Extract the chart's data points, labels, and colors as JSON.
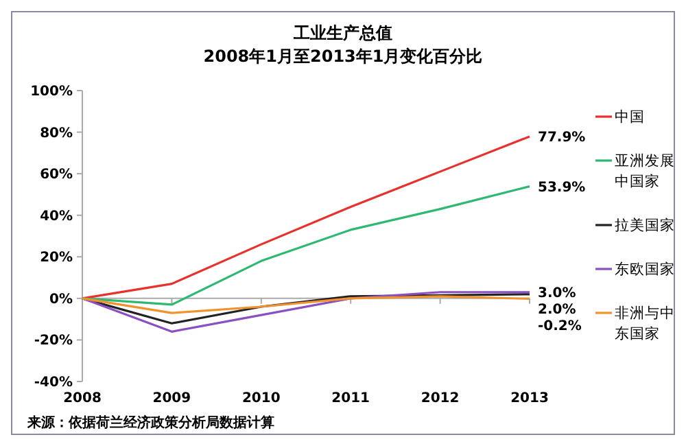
{
  "chart_data": {
    "type": "line",
    "title": "工业生产总值",
    "subtitle": "2008年1月至2013年1月变化百分比",
    "x": [
      2008,
      2009,
      2010,
      2011,
      2012,
      2013
    ],
    "xlim": [
      2008,
      2013
    ],
    "xticks": [
      2008,
      2009,
      2010,
      2011,
      2012,
      2013
    ],
    "ylim": [
      -40,
      100
    ],
    "yticks": [
      {
        "value": -40,
        "label": "-40%"
      },
      {
        "value": -20,
        "label": "-20%"
      },
      {
        "value": 0,
        "label": "0%"
      },
      {
        "value": 20,
        "label": "20%"
      },
      {
        "value": 40,
        "label": "40%"
      },
      {
        "value": 60,
        "label": "60%"
      },
      {
        "value": 80,
        "label": "80%"
      },
      {
        "value": 100,
        "label": "100%"
      }
    ],
    "legend": "right",
    "marker": "none",
    "line_style": "solid",
    "series": [
      {
        "name": "中国",
        "color": "#e8302c",
        "values": [
          0,
          7,
          26,
          44,
          61,
          77.9
        ],
        "value_labels": [
          null,
          null,
          null,
          null,
          null,
          "77.9%"
        ]
      },
      {
        "name": "亚洲发展中国家",
        "color": "#2eb872",
        "values": [
          0,
          -3,
          18,
          33,
          43,
          53.9
        ],
        "value_labels": [
          null,
          null,
          null,
          null,
          null,
          "53.9%"
        ]
      },
      {
        "name": "拉美国家",
        "color": "#222222",
        "values": [
          0,
          -12,
          -4,
          1,
          1.5,
          2.0
        ],
        "value_labels": [
          null,
          null,
          null,
          null,
          null,
          "2.0%"
        ]
      },
      {
        "name": "东欧国家",
        "color": "#8a4fc1",
        "values": [
          0,
          -16,
          -8,
          0,
          3,
          3.0
        ],
        "value_labels": [
          null,
          null,
          null,
          null,
          null,
          "3.0%"
        ]
      },
      {
        "name": "非洲与中东国家",
        "color": "#f0922e",
        "values": [
          0,
          -7,
          -4,
          0,
          1,
          -0.2
        ],
        "value_labels": [
          null,
          null,
          null,
          null,
          null,
          "-0.2%"
        ]
      }
    ],
    "annotations": [
      "来源：依据荷兰经济政策分析局数据计算"
    ]
  }
}
